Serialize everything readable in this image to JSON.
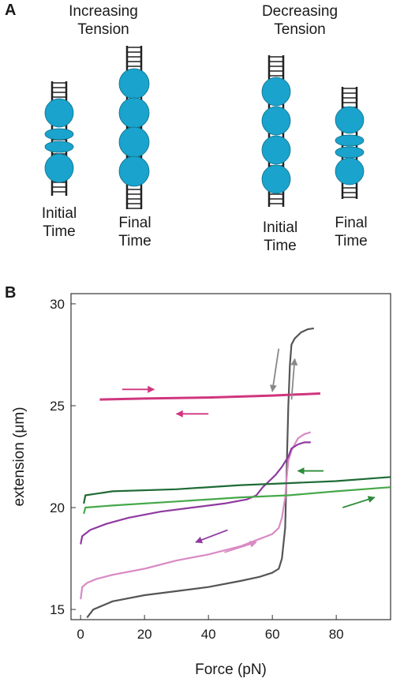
{
  "panel_a": {
    "letter": "A",
    "groups": [
      {
        "title_line1": "Increasing",
        "title_line2": "Tension",
        "states": [
          {
            "label_line1": "Initial",
            "label_line2": "Time",
            "config": "compact"
          },
          {
            "label_line1": "Final",
            "label_line2": "Time",
            "config": "extended"
          }
        ]
      },
      {
        "title_line1": "Decreasing",
        "title_line2": "Tension",
        "states": [
          {
            "label_line1": "Initial",
            "label_line2": "Time",
            "config": "extended"
          },
          {
            "label_line1": "Final",
            "label_line2": "Time",
            "config": "compact"
          }
        ]
      }
    ],
    "colors": {
      "nucleosome": "#1aa3cc",
      "dna": "#222222"
    }
  },
  "panel_b": {
    "letter": "B"
  },
  "chart_data": {
    "type": "line",
    "xlabel": "Force (pN)",
    "ylabel": "extension (μm)",
    "xlim": [
      -3,
      97
    ],
    "ylim": [
      14.5,
      30.5
    ],
    "xticks": [
      0,
      20,
      40,
      60,
      80
    ],
    "yticks": [
      15,
      20,
      25,
      30
    ],
    "grid": false,
    "series": [
      {
        "color": "#555555",
        "x": [
          2,
          4,
          10,
          20,
          30,
          40,
          50,
          56,
          60,
          62,
          63,
          64,
          64.5,
          65,
          65.5,
          66,
          67,
          69,
          71,
          73
        ],
        "y": [
          14.6,
          15.0,
          15.4,
          15.7,
          15.9,
          16.1,
          16.4,
          16.6,
          16.8,
          17.0,
          17.5,
          19,
          22,
          25,
          27,
          28,
          28.3,
          28.6,
          28.75,
          28.8
        ]
      },
      {
        "color": "#d98ac4",
        "x": [
          0,
          0.5,
          2,
          5,
          10,
          20,
          30,
          40,
          50,
          55,
          60,
          62,
          63,
          64,
          64.5,
          65,
          66,
          67,
          68,
          70,
          72
        ],
        "y": [
          15.5,
          16.1,
          16.3,
          16.5,
          16.7,
          17.0,
          17.4,
          17.7,
          18.1,
          18.4,
          18.7,
          19.0,
          19.5,
          20.5,
          21.5,
          22.3,
          22.8,
          23.1,
          23.4,
          23.6,
          23.7
        ]
      },
      {
        "color": "#8f3aa0",
        "x": [
          0,
          0.5,
          3,
          8,
          15,
          25,
          35,
          45,
          52,
          55,
          57,
          59,
          61,
          63,
          65,
          66,
          68,
          70,
          72
        ],
        "y": [
          18.2,
          18.6,
          18.9,
          19.2,
          19.5,
          19.8,
          20.0,
          20.2,
          20.4,
          20.6,
          21.0,
          21.3,
          21.6,
          22.0,
          22.5,
          22.9,
          23.1,
          23.2,
          23.2
        ]
      },
      {
        "color": "#d0357e",
        "x": [
          6,
          20,
          40,
          60,
          75
        ],
        "y": [
          25.3,
          25.35,
          25.4,
          25.5,
          25.6
        ]
      },
      {
        "color": "#46a84a",
        "x": [
          1,
          1.5,
          10,
          30,
          50,
          65,
          80,
          97
        ],
        "y": [
          19.7,
          20.0,
          20.1,
          20.3,
          20.5,
          20.6,
          20.8,
          21.0
        ]
      },
      {
        "color": "#1e6b35",
        "x": [
          1,
          1.5,
          10,
          30,
          50,
          65,
          80,
          97
        ],
        "y": [
          20.2,
          20.6,
          20.8,
          20.9,
          21.1,
          21.2,
          21.3,
          21.5
        ]
      }
    ],
    "annotations": [
      {
        "type": "arrow",
        "color": "#d0357e",
        "from": [
          13,
          25.8
        ],
        "to": [
          23,
          25.8
        ]
      },
      {
        "type": "arrow",
        "color": "#d0357e",
        "from": [
          40,
          24.6
        ],
        "to": [
          30,
          24.6
        ]
      },
      {
        "type": "arrow",
        "color": "#8f3aa0",
        "from": [
          46,
          18.9
        ],
        "to": [
          36,
          18.3
        ]
      },
      {
        "type": "arrow",
        "color": "#d98ac4",
        "from": [
          45,
          17.8
        ],
        "to": [
          55,
          18.3
        ]
      },
      {
        "type": "arrow",
        "color": "#888888",
        "from": [
          62,
          27.8
        ],
        "to": [
          60,
          25.7
        ]
      },
      {
        "type": "arrow",
        "color": "#888888",
        "from": [
          66,
          25.3
        ],
        "to": [
          67,
          27.3
        ]
      },
      {
        "type": "arrow",
        "color": "#2e8b3a",
        "from": [
          76,
          21.8
        ],
        "to": [
          68,
          21.8
        ]
      },
      {
        "type": "arrow",
        "color": "#2e8b3a",
        "from": [
          82,
          20.0
        ],
        "to": [
          92,
          20.5
        ]
      }
    ]
  }
}
